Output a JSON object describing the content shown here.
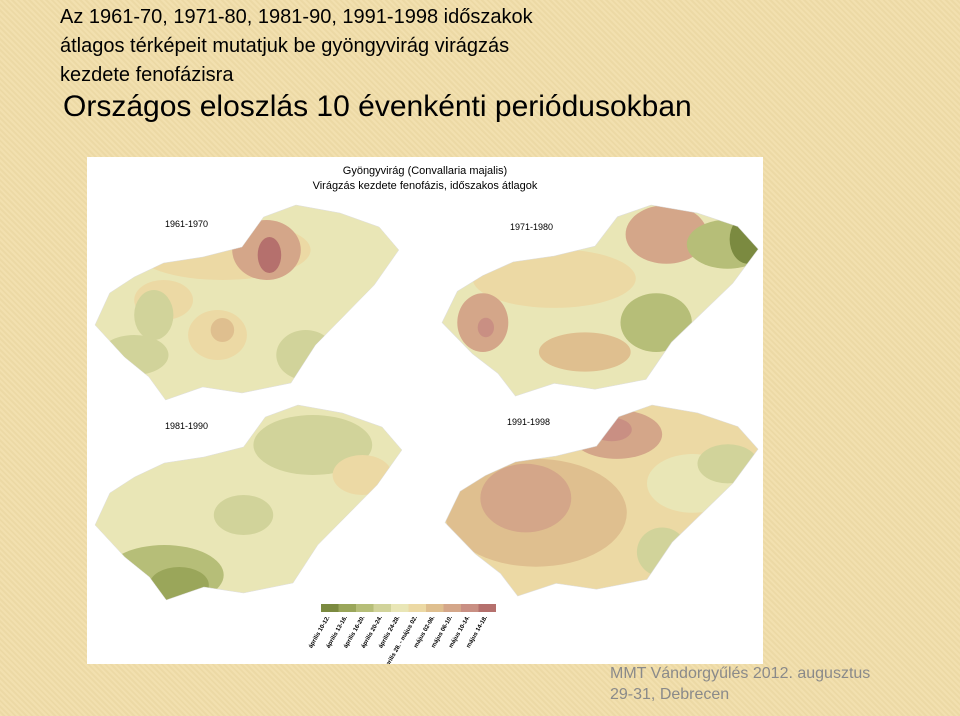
{
  "title": {
    "lines": [
      "Az 1961-70, 1971-80, 1981-90, 1991-1998 időszakok",
      "átlagos térképeit mutatjuk be gyöngyvirág virágzás",
      "kezdete fenofázisra"
    ]
  },
  "subtitle": "Országos eloszlás 10 évenkénti periódusokban",
  "figure": {
    "title": [
      "Gyöngyvirág (Convallaria majalis)",
      "Virágzás kezdete fenofázis, időszakos átlagok"
    ]
  },
  "maps": [
    "1961-1970",
    "1971-1980",
    "1981-1990",
    "1991-1998"
  ],
  "legend": {
    "labels": [
      "április 10-12.",
      "április 13-16.",
      "április 16-20.",
      "április 20-24.",
      "április 24-28.",
      "április 28. - május 02.",
      "május 02-06.",
      "május 06-10.",
      "május 10-14.",
      "május 14-18."
    ],
    "colors": [
      "#7b8a40",
      "#9aa65a",
      "#b6be78",
      "#d1d39a",
      "#e9e6b6",
      "#ecd9a4",
      "#dfbf8f",
      "#d4a689",
      "#c98f83",
      "#b5706d"
    ]
  },
  "footer": [
    "MMT Vándorgyűlés 2012. augusztus",
    "29-31, Debrecen"
  ]
}
